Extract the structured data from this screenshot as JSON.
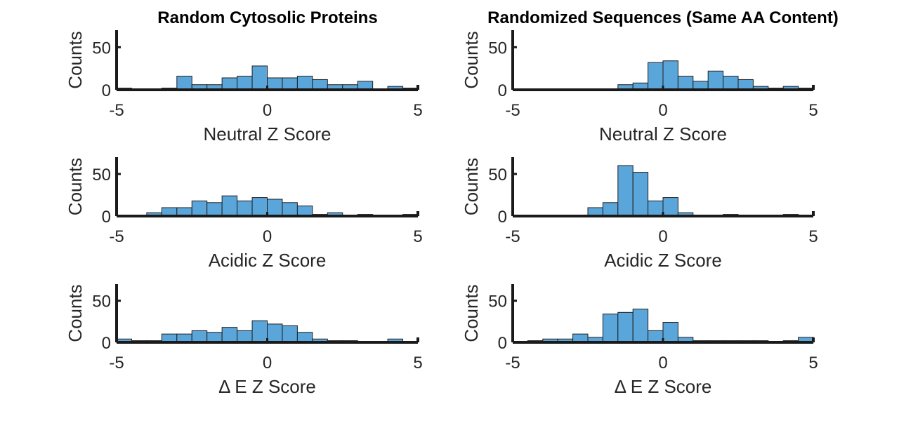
{
  "chart_data": [
    {
      "type": "bar",
      "title": "Random Cytosolic Proteins",
      "xlabel": "Neutral Z Score",
      "ylabel": "Counts",
      "xlim": [
        -5,
        5
      ],
      "ylim": [
        0,
        70
      ],
      "xticks": [
        "-5",
        "0",
        "5"
      ],
      "yticks": [
        "0",
        "50"
      ],
      "bin_edges": [
        -5,
        -4.5,
        -4,
        -3.5,
        -3,
        -2.5,
        -2,
        -1.5,
        -1,
        -0.5,
        0,
        0.5,
        1,
        1.5,
        2,
        2.5,
        3,
        3.5,
        4,
        4.5,
        5
      ],
      "values": [
        2,
        0,
        0,
        2,
        16,
        6,
        6,
        14,
        16,
        28,
        14,
        14,
        16,
        12,
        6,
        6,
        10,
        0,
        4,
        2
      ]
    },
    {
      "type": "bar",
      "title": "Randomized Sequences (Same AA Content)",
      "xlabel": "Neutral Z Score",
      "ylabel": "Counts",
      "xlim": [
        -5,
        5
      ],
      "ylim": [
        0,
        70
      ],
      "xticks": [
        "-5",
        "0",
        "5"
      ],
      "yticks": [
        "0",
        "50"
      ],
      "bin_edges": [
        -5,
        -4.5,
        -4,
        -3.5,
        -3,
        -2.5,
        -2,
        -1.5,
        -1,
        -0.5,
        0,
        0.5,
        1,
        1.5,
        2,
        2.5,
        3,
        3.5,
        4,
        4.5,
        5
      ],
      "values": [
        0,
        0,
        0,
        0,
        0,
        0,
        0,
        6,
        8,
        32,
        34,
        16,
        10,
        22,
        16,
        12,
        4,
        2,
        4,
        2
      ]
    },
    {
      "type": "bar",
      "title": "",
      "xlabel": "Acidic Z Score",
      "ylabel": "Counts",
      "xlim": [
        -5,
        5
      ],
      "ylim": [
        0,
        70
      ],
      "xticks": [
        "-5",
        "0",
        "5"
      ],
      "yticks": [
        "0",
        "50"
      ],
      "bin_edges": [
        -5,
        -4.5,
        -4,
        -3.5,
        -3,
        -2.5,
        -2,
        -1.5,
        -1,
        -0.5,
        0,
        0.5,
        1,
        1.5,
        2,
        2.5,
        3,
        3.5,
        4,
        4.5,
        5
      ],
      "values": [
        0,
        0,
        4,
        10,
        10,
        18,
        16,
        24,
        18,
        22,
        20,
        16,
        12,
        2,
        4,
        0,
        2,
        0,
        0,
        2
      ]
    },
    {
      "type": "bar",
      "title": "",
      "xlabel": "Acidic Z Score",
      "ylabel": "Counts",
      "xlim": [
        -5,
        5
      ],
      "ylim": [
        0,
        70
      ],
      "xticks": [
        "-5",
        "0",
        "5"
      ],
      "yticks": [
        "0",
        "50"
      ],
      "bin_edges": [
        -5,
        -4.5,
        -4,
        -3.5,
        -3,
        -2.5,
        -2,
        -1.5,
        -1,
        -0.5,
        0,
        0.5,
        1,
        1.5,
        2,
        2.5,
        3,
        3.5,
        4,
        4.5,
        5
      ],
      "values": [
        0,
        0,
        0,
        0,
        0,
        10,
        16,
        60,
        52,
        18,
        22,
        4,
        0,
        0,
        2,
        0,
        0,
        0,
        2,
        0
      ]
    },
    {
      "type": "bar",
      "title": "",
      "xlabel": "Δ E Z Score",
      "ylabel": "Counts",
      "xlim": [
        -5,
        5
      ],
      "ylim": [
        0,
        70
      ],
      "xticks": [
        "-5",
        "0",
        "5"
      ],
      "yticks": [
        "0",
        "50"
      ],
      "bin_edges": [
        -5,
        -4.5,
        -4,
        -3.5,
        -3,
        -2.5,
        -2,
        -1.5,
        -1,
        -0.5,
        0,
        0.5,
        1,
        1.5,
        2,
        2.5,
        3,
        3.5,
        4,
        4.5,
        5
      ],
      "values": [
        4,
        2,
        2,
        10,
        10,
        14,
        12,
        18,
        14,
        26,
        22,
        20,
        12,
        4,
        2,
        2,
        0,
        0,
        4,
        0
      ]
    },
    {
      "type": "bar",
      "title": "",
      "xlabel": "Δ E Z Score",
      "ylabel": "Counts",
      "xlim": [
        -5,
        5
      ],
      "ylim": [
        0,
        70
      ],
      "xticks": [
        "-5",
        "0",
        "5"
      ],
      "yticks": [
        "0",
        "50"
      ],
      "bin_edges": [
        -5,
        -4.5,
        -4,
        -3.5,
        -3,
        -2.5,
        -2,
        -1.5,
        -1,
        -0.5,
        0,
        0.5,
        1,
        1.5,
        2,
        2.5,
        3,
        3.5,
        4,
        4.5,
        5
      ],
      "values": [
        0,
        2,
        4,
        4,
        10,
        6,
        34,
        36,
        40,
        14,
        24,
        6,
        2,
        2,
        2,
        2,
        2,
        0,
        2,
        6
      ]
    }
  ]
}
